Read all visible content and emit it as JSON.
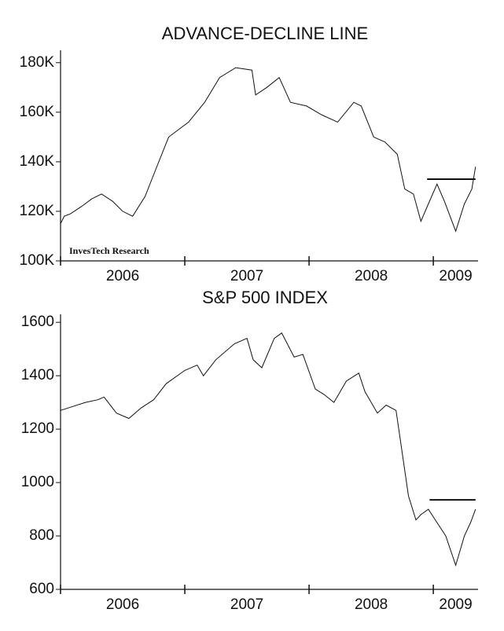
{
  "chart_data": [
    {
      "type": "line",
      "title": "ADVANCE-DECLINE LINE",
      "annotation": "InvesTech Research",
      "x": [
        2006.0,
        2006.03,
        2006.08,
        2006.17,
        2006.25,
        2006.33,
        2006.42,
        2006.5,
        2006.58,
        2006.68,
        2006.78,
        2006.87,
        2007.03,
        2007.16,
        2007.28,
        2007.41,
        2007.54,
        2007.57,
        2007.66,
        2007.76,
        2007.85,
        2007.98,
        2008.1,
        2008.23,
        2008.36,
        2008.42,
        2008.52,
        2008.61,
        2008.71,
        2008.77,
        2008.84,
        2008.9,
        2008.96,
        2009.03,
        2009.09,
        2009.15,
        2009.18,
        2009.25,
        2009.31,
        2009.34
      ],
      "values": [
        115000,
        118000,
        119000,
        122000,
        125000,
        127000,
        124000,
        120000,
        118000,
        126000,
        138700,
        150000,
        156000,
        164000,
        174000,
        178000,
        177000,
        167000,
        170000,
        174000,
        164000,
        162500,
        159000,
        156000,
        164000,
        162500,
        150000,
        148000,
        143000,
        129000,
        127000,
        116000,
        123000,
        131000,
        124000,
        116000,
        112000,
        123000,
        129000,
        138000
      ],
      "color": "#111111",
      "reference_line": {
        "y": 133000,
        "x": [
          2008.95,
          2009.34
        ]
      },
      "xlim": [
        2006.0,
        2009.36
      ],
      "xticks": [
        {
          "value": 2006.5,
          "label": "2006"
        },
        {
          "value": 2007.5,
          "label": "2007"
        },
        {
          "value": 2008.5,
          "label": "2008"
        },
        {
          "value": 2009.5,
          "label": "2009"
        }
      ],
      "ylim": [
        100000,
        185000
      ],
      "yticks": [
        {
          "value": 100000,
          "label": "100K"
        },
        {
          "value": 120000,
          "label": "120K"
        },
        {
          "value": 140000,
          "label": "140K"
        },
        {
          "value": 160000,
          "label": "160K"
        },
        {
          "value": 180000,
          "label": "180K"
        }
      ]
    },
    {
      "type": "line",
      "title": "S&P 500 INDEX",
      "x": [
        2006.0,
        2006.1,
        2006.2,
        2006.3,
        2006.35,
        2006.45,
        2006.55,
        2006.65,
        2006.75,
        2006.85,
        2007.0,
        2007.1,
        2007.15,
        2007.25,
        2007.4,
        2007.5,
        2007.55,
        2007.62,
        2007.72,
        2007.78,
        2007.88,
        2007.95,
        2008.05,
        2008.12,
        2008.2,
        2008.3,
        2008.4,
        2008.45,
        2008.55,
        2008.62,
        2008.7,
        2008.75,
        2008.8,
        2008.86,
        2008.9,
        2008.96,
        2009.03,
        2009.1,
        2009.18,
        2009.25,
        2009.3,
        2009.34
      ],
      "values": [
        1270,
        1285,
        1300,
        1310,
        1320,
        1260,
        1240,
        1280,
        1310,
        1370,
        1420,
        1440,
        1400,
        1460,
        1520,
        1540,
        1460,
        1430,
        1540,
        1560,
        1470,
        1480,
        1350,
        1330,
        1300,
        1380,
        1410,
        1340,
        1260,
        1290,
        1270,
        1110,
        950,
        860,
        880,
        900,
        850,
        800,
        690,
        800,
        850,
        900
      ],
      "color": "#111111",
      "reference_line": {
        "y": 935,
        "x": [
          2008.97,
          2009.34
        ]
      },
      "xlim": [
        2006.0,
        2009.36
      ],
      "xticks": [
        {
          "value": 2006.5,
          "label": "2006"
        },
        {
          "value": 2007.5,
          "label": "2007"
        },
        {
          "value": 2008.5,
          "label": "2008"
        },
        {
          "value": 2009.5,
          "label": "2009"
        }
      ],
      "ylim": [
        600,
        1630
      ],
      "yticks": [
        600,
        800,
        1000,
        1200,
        1400,
        1600
      ]
    }
  ]
}
